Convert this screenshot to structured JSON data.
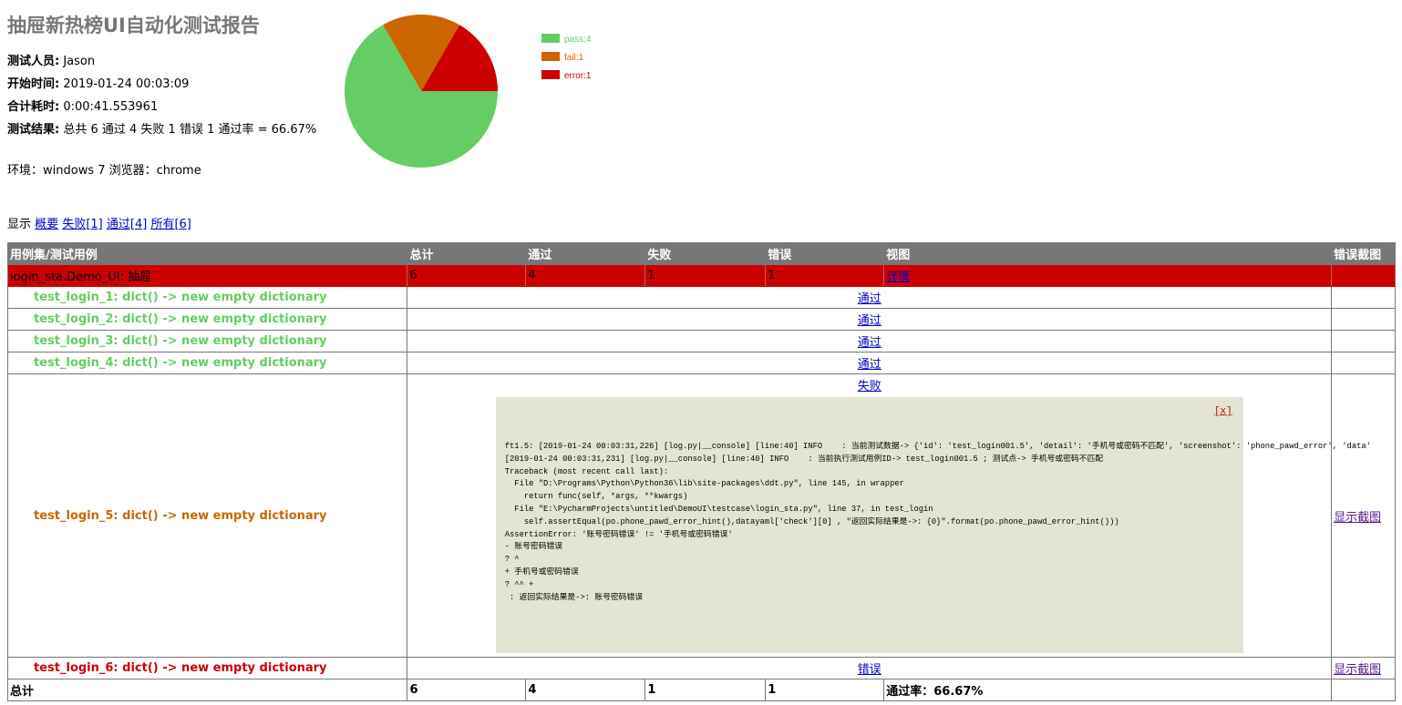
{
  "title": "抽屉新热榜UI自动化测试报告",
  "attributes": [
    {
      "label": "测试人员:",
      "value": "Jason"
    },
    {
      "label": "开始时间:",
      "value": "2019-01-24 00:03:09"
    },
    {
      "label": "合计耗时:",
      "value": "0:00:41.553961"
    },
    {
      "label": "测试结果:",
      "value": "总共 6 通过 4 失败 1 错误 1 通过率 = 66.67%"
    }
  ],
  "environment": "环境：windows 7 浏览器：chrome",
  "chart_data": {
    "type": "pie",
    "slices": [
      {
        "name": "pass:4",
        "value": 4,
        "color": "#66cc66"
      },
      {
        "name": "fail:1",
        "value": 1,
        "color": "#cc6600"
      },
      {
        "name": "error:1",
        "value": 1,
        "color": "#cc0000"
      }
    ],
    "legend": "right"
  },
  "filter": {
    "label": "显示",
    "links": [
      "概要",
      "失败[1]",
      "通过[4]",
      "所有[6]"
    ]
  },
  "table": {
    "headers": [
      "用例集/测试用例",
      "总计",
      "通过",
      "失败",
      "错误",
      "视图",
      "错误截图"
    ],
    "suite": {
      "name": "login_sta.Demo_UI: 抽屉",
      "total": "6",
      "pass": "4",
      "fail": "1",
      "error": "1",
      "view": "详情"
    },
    "cases": [
      {
        "name": "test_login_1: dict() -> new empty dictionary",
        "status": "通过",
        "screenshot": ""
      },
      {
        "name": "test_login_2: dict() -> new empty dictionary",
        "status": "通过",
        "screenshot": ""
      },
      {
        "name": "test_login_3: dict() -> new empty dictionary",
        "status": "通过",
        "screenshot": ""
      },
      {
        "name": "test_login_4: dict() -> new empty dictionary",
        "status": "通过",
        "screenshot": ""
      },
      {
        "name": "test_login_5: dict() -> new empty dictionary",
        "status": "失败",
        "screenshot": "显示截图",
        "close": "[x]",
        "traceback": "ft1.5: [2019-01-24 00:03:31,226] [log.py|__console] [line:40] INFO    : 当前测试数据-> {'id': 'test_login001.5', 'detail': '手机号或密码不匹配', 'screenshot': 'phone_pawd_error', 'data'\n[2019-01-24 00:03:31,231] [log.py|__console] [line:40] INFO    : 当前执行测试用例ID-> test_login001.5 ; 测试点-> 手机号或密码不匹配\nTraceback (most recent call last):\n  File \"D:\\Programs\\Python\\Python36\\lib\\site-packages\\ddt.py\", line 145, in wrapper\n    return func(self, *args, **kwargs)\n  File \"E:\\PycharmProjects\\untitled\\DemoUI\\testcase\\login_sta.py\", line 37, in test_login\n    self.assertEqual(po.phone_pawd_error_hint(),datayaml['check'][0] , \"返回实际结果是->: {0}\".format(po.phone_pawd_error_hint()))\nAssertionError: '账号密码错误' != '手机号或密码错误'\n- 账号密码错误\n? ^\n+ 手机号或密码错误\n? ^^ +\n : 返回实际结果是->: 账号密码错误"
      },
      {
        "name": "test_login_6: dict() -> new empty dictionary",
        "status": "错误",
        "screenshot": "显示截图"
      }
    ],
    "total": {
      "label": "总计",
      "total": "6",
      "pass": "4",
      "fail": "1",
      "error": "1",
      "rate": "通过率：66.67%"
    }
  }
}
